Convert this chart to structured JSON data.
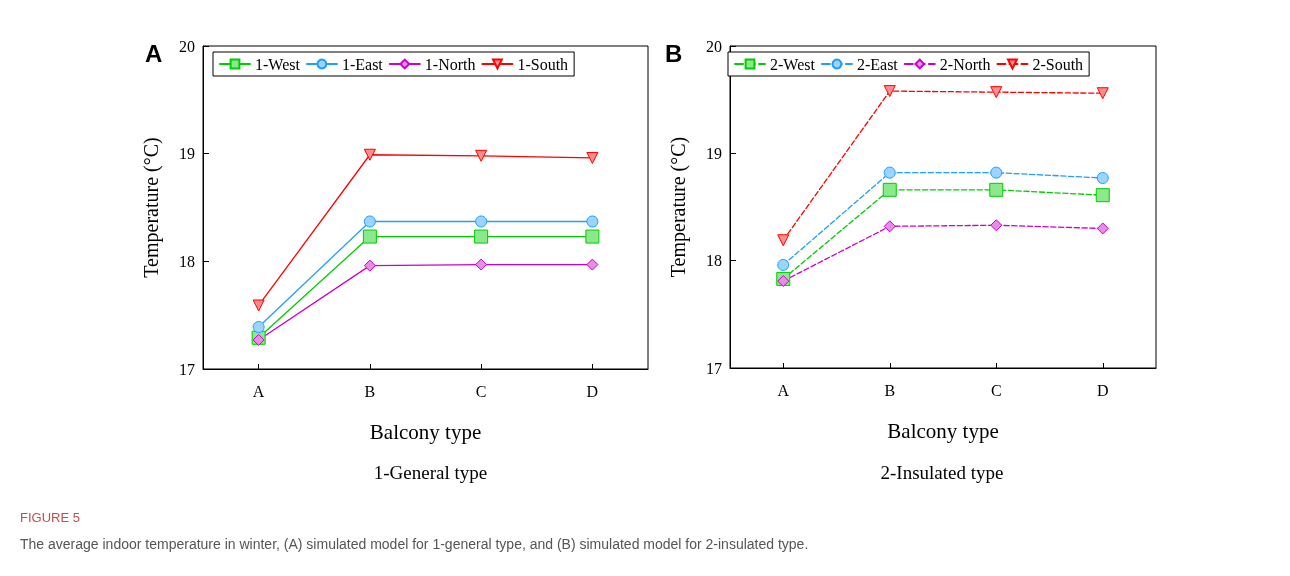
{
  "chart_data": [
    {
      "type": "line",
      "title": "A",
      "subtitle": "1-General type",
      "xlabel": "Balcony type",
      "ylabel": "Temperature (°C)",
      "categories": [
        "A",
        "B",
        "C",
        "D"
      ],
      "ylim": [
        17,
        20
      ],
      "yticks": [
        17,
        18,
        19,
        20
      ],
      "grid": false,
      "legend": "top",
      "line_style": "solid",
      "annotations": [
        "FIGURE 5",
        "The average indoor temperature in winter, (A) simulated model for 1-general type, and (B) simulated model for 2-insulated type."
      ],
      "series": [
        {
          "name": "1-West",
          "color": "#00cc00",
          "marker": "square",
          "values": [
            17.29,
            18.23,
            18.23,
            18.23
          ]
        },
        {
          "name": "1-East",
          "color": "#1e9fff",
          "marker": "circle",
          "values": [
            17.39,
            18.37,
            18.37,
            18.37
          ]
        },
        {
          "name": "1-North",
          "color": "#cc00cc",
          "marker": "diamond",
          "values": [
            17.27,
            17.96,
            17.97,
            17.97
          ]
        },
        {
          "name": "1-South",
          "color": "#ff0000",
          "marker": "triangle",
          "values": [
            17.59,
            18.99,
            18.98,
            18.96
          ]
        }
      ]
    },
    {
      "type": "line",
      "title": "B",
      "subtitle": "2-Insulated type",
      "xlabel": "Balcony type",
      "ylabel": "Temperature (°C)",
      "categories": [
        "A",
        "B",
        "C",
        "D"
      ],
      "ylim": [
        17,
        20
      ],
      "yticks": [
        17,
        18,
        19,
        20
      ],
      "grid": false,
      "legend": "top",
      "line_style": "dashed",
      "series": [
        {
          "name": "2-West",
          "color": "#00cc00",
          "marker": "square",
          "values": [
            17.83,
            18.66,
            18.66,
            18.61
          ]
        },
        {
          "name": "2-East",
          "color": "#1e9fff",
          "marker": "circle",
          "values": [
            17.96,
            18.82,
            18.82,
            18.77
          ]
        },
        {
          "name": "2-North",
          "color": "#cc00cc",
          "marker": "diamond",
          "values": [
            17.81,
            18.32,
            18.33,
            18.3
          ]
        },
        {
          "name": "2-South",
          "color": "#ff0000",
          "marker": "triangle",
          "values": [
            18.19,
            19.58,
            19.57,
            19.56
          ]
        }
      ]
    }
  ]
}
